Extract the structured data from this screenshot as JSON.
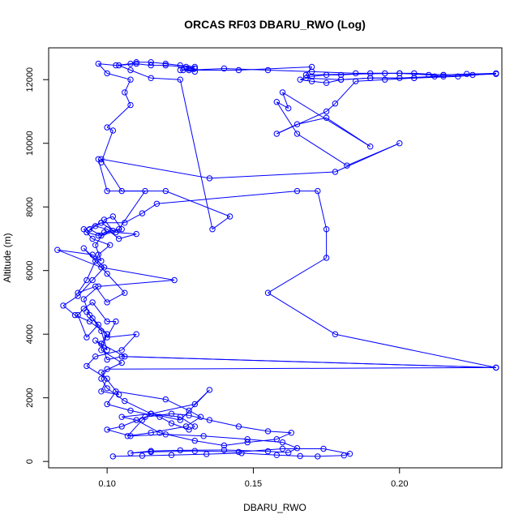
{
  "chart_data": {
    "type": "line",
    "title": "ORCAS RF03 DBARU_RWO (Log)",
    "xlabel": "DBARU_RWO",
    "ylabel": "Altitude (m)",
    "xlim": [
      0.08,
      0.235
    ],
    "ylim": [
      -200,
      13000
    ],
    "xticks": [
      0.1,
      0.15,
      0.2
    ],
    "xtick_labels": [
      "0.10",
      "0.15",
      "0.20"
    ],
    "yticks": [
      0,
      2000,
      4000,
      6000,
      8000,
      10000,
      12000
    ],
    "ytick_labels": [
      "0",
      "2000",
      "4000",
      "6000",
      "8000",
      "10000",
      "12000"
    ],
    "grid": false,
    "marker": "open-circle",
    "line_color": "#0000ff",
    "points": [
      [
        0.102,
        160
      ],
      [
        0.112,
        180
      ],
      [
        0.122,
        200
      ],
      [
        0.134,
        230
      ],
      [
        0.146,
        260
      ],
      [
        0.158,
        200
      ],
      [
        0.166,
        170
      ],
      [
        0.172,
        160
      ],
      [
        0.181,
        190
      ],
      [
        0.183,
        240
      ],
      [
        0.174,
        400
      ],
      [
        0.16,
        400
      ],
      [
        0.145,
        300
      ],
      [
        0.13,
        330
      ],
      [
        0.115,
        300
      ],
      [
        0.108,
        260
      ],
      [
        0.115,
        330
      ],
      [
        0.125,
        350
      ],
      [
        0.14,
        360
      ],
      [
        0.155,
        320
      ],
      [
        0.162,
        280
      ],
      [
        0.165,
        420
      ],
      [
        0.16,
        600
      ],
      [
        0.148,
        700
      ],
      [
        0.133,
        800
      ],
      [
        0.12,
        850
      ],
      [
        0.108,
        800
      ],
      [
        0.1,
        1000
      ],
      [
        0.105,
        1100
      ],
      [
        0.113,
        1400
      ],
      [
        0.122,
        1500
      ],
      [
        0.128,
        1450
      ],
      [
        0.135,
        1300
      ],
      [
        0.145,
        1100
      ],
      [
        0.155,
        950
      ],
      [
        0.163,
        900
      ],
      [
        0.158,
        700
      ],
      [
        0.148,
        600
      ],
      [
        0.14,
        500
      ],
      [
        0.13,
        650
      ],
      [
        0.118,
        900
      ],
      [
        0.11,
        1300
      ],
      [
        0.105,
        1400
      ],
      [
        0.115,
        1500
      ],
      [
        0.125,
        1400
      ],
      [
        0.13,
        1100
      ],
      [
        0.128,
        1000
      ],
      [
        0.122,
        1200
      ],
      [
        0.118,
        1400
      ],
      [
        0.108,
        1600
      ],
      [
        0.1,
        1800
      ],
      [
        0.103,
        2200
      ],
      [
        0.12,
        1950
      ],
      [
        0.128,
        1600
      ],
      [
        0.132,
        1400
      ],
      [
        0.127,
        1100
      ],
      [
        0.115,
        900
      ],
      [
        0.107,
        800
      ],
      [
        0.112,
        1300
      ],
      [
        0.115,
        1500
      ],
      [
        0.125,
        1300
      ],
      [
        0.135,
        2250
      ],
      [
        0.13,
        1800
      ],
      [
        0.115,
        1500
      ],
      [
        0.106,
        1900
      ],
      [
        0.1,
        2300
      ],
      [
        0.098,
        2600
      ],
      [
        0.1,
        2900
      ],
      [
        0.233,
        2950
      ],
      [
        0.105,
        3300
      ],
      [
        0.1,
        3200
      ],
      [
        0.098,
        3700
      ],
      [
        0.096,
        3800
      ],
      [
        0.1,
        3500
      ],
      [
        0.098,
        4100
      ],
      [
        0.095,
        4500
      ],
      [
        0.093,
        4700
      ],
      [
        0.097,
        4300
      ],
      [
        0.093,
        3900
      ],
      [
        0.09,
        4600
      ],
      [
        0.092,
        4800
      ],
      [
        0.095,
        5000
      ],
      [
        0.1,
        4400
      ],
      [
        0.103,
        4400
      ],
      [
        0.1,
        3900
      ],
      [
        0.11,
        4000
      ],
      [
        0.105,
        3500
      ],
      [
        0.096,
        3300
      ],
      [
        0.093,
        3000
      ],
      [
        0.1,
        2600
      ],
      [
        0.098,
        2200
      ],
      [
        0.104,
        2100
      ],
      [
        0.098,
        2800
      ],
      [
        0.105,
        3100
      ],
      [
        0.098,
        3500
      ],
      [
        0.1,
        4000
      ],
      [
        0.094,
        4400
      ],
      [
        0.089,
        4600
      ],
      [
        0.085,
        4900
      ],
      [
        0.09,
        5200
      ],
      [
        0.095,
        5700
      ],
      [
        0.099,
        6100
      ],
      [
        0.092,
        6700
      ],
      [
        0.096,
        6300
      ],
      [
        0.1,
        5900
      ],
      [
        0.106,
        5300
      ],
      [
        0.1,
        5000
      ],
      [
        0.096,
        5500
      ],
      [
        0.09,
        5300
      ],
      [
        0.093,
        5700
      ],
      [
        0.097,
        6500
      ],
      [
        0.101,
        6800
      ],
      [
        0.095,
        7000
      ],
      [
        0.092,
        7300
      ],
      [
        0.098,
        7500
      ],
      [
        0.103,
        7200
      ],
      [
        0.11,
        7150
      ],
      [
        0.104,
        7000
      ],
      [
        0.1,
        7300
      ],
      [
        0.096,
        7400
      ],
      [
        0.093,
        7200
      ],
      [
        0.097,
        7100
      ],
      [
        0.102,
        7250
      ],
      [
        0.099,
        7600
      ],
      [
        0.102,
        7700
      ],
      [
        0.105,
        7300
      ],
      [
        0.098,
        7100
      ],
      [
        0.094,
        7300
      ],
      [
        0.098,
        7500
      ],
      [
        0.106,
        7500
      ],
      [
        0.112,
        7800
      ],
      [
        0.117,
        8100
      ],
      [
        0.165,
        8500
      ],
      [
        0.172,
        8500
      ],
      [
        0.175,
        7300
      ],
      [
        0.175,
        6400
      ],
      [
        0.155,
        5300
      ],
      [
        0.178,
        4000
      ],
      [
        0.233,
        2950
      ],
      [
        0.106,
        3300
      ],
      [
        0.098,
        3700
      ],
      [
        0.1,
        4000
      ],
      [
        0.094,
        4600
      ],
      [
        0.092,
        5100
      ],
      [
        0.097,
        5500
      ],
      [
        0.123,
        5700
      ],
      [
        0.098,
        6100
      ],
      [
        0.083,
        6650
      ],
      [
        0.095,
        6500
      ],
      [
        0.098,
        6300
      ],
      [
        0.096,
        6800
      ],
      [
        0.099,
        7200
      ],
      [
        0.104,
        7300
      ],
      [
        0.113,
        8500
      ],
      [
        0.1,
        8500
      ],
      [
        0.097,
        9500
      ],
      [
        0.098,
        9400
      ],
      [
        0.102,
        10400
      ],
      [
        0.1,
        10500
      ],
      [
        0.108,
        11200
      ],
      [
        0.106,
        11600
      ],
      [
        0.108,
        12000
      ],
      [
        0.1,
        12200
      ],
      [
        0.097,
        12500
      ],
      [
        0.103,
        12450
      ],
      [
        0.108,
        12500
      ],
      [
        0.11,
        12550
      ],
      [
        0.115,
        12550
      ],
      [
        0.12,
        12500
      ],
      [
        0.125,
        12450
      ],
      [
        0.13,
        12400
      ],
      [
        0.128,
        12350
      ],
      [
        0.126,
        12300
      ],
      [
        0.13,
        12250
      ],
      [
        0.128,
        12300
      ],
      [
        0.14,
        12350
      ],
      [
        0.155,
        12300
      ],
      [
        0.17,
        12250
      ],
      [
        0.185,
        12200
      ],
      [
        0.195,
        12200
      ],
      [
        0.205,
        12200
      ],
      [
        0.215,
        12150
      ],
      [
        0.223,
        12180
      ],
      [
        0.233,
        12180
      ],
      [
        0.225,
        12150
      ],
      [
        0.212,
        12100
      ],
      [
        0.2,
        12050
      ],
      [
        0.19,
        12050
      ],
      [
        0.18,
        12000
      ],
      [
        0.175,
        11900
      ],
      [
        0.17,
        11950
      ],
      [
        0.166,
        12000
      ],
      [
        0.17,
        12100
      ],
      [
        0.175,
        12150
      ],
      [
        0.18,
        12150
      ],
      [
        0.19,
        12200
      ],
      [
        0.2,
        12200
      ],
      [
        0.21,
        12150
      ],
      [
        0.215,
        12100
      ],
      [
        0.205,
        12050
      ],
      [
        0.195,
        12000
      ],
      [
        0.185,
        11950
      ],
      [
        0.178,
        11250
      ],
      [
        0.175,
        11000
      ],
      [
        0.158,
        10300
      ],
      [
        0.165,
        10600
      ],
      [
        0.175,
        10800
      ],
      [
        0.19,
        9900
      ],
      [
        0.16,
        11600
      ],
      [
        0.162,
        11100
      ],
      [
        0.158,
        11300
      ],
      [
        0.165,
        10300
      ],
      [
        0.182,
        9300
      ],
      [
        0.2,
        10000
      ],
      [
        0.178,
        9100
      ],
      [
        0.135,
        8900
      ],
      [
        0.098,
        9500
      ],
      [
        0.105,
        8500
      ],
      [
        0.12,
        8500
      ],
      [
        0.142,
        7700
      ],
      [
        0.136,
        7300
      ],
      [
        0.125,
        12000
      ],
      [
        0.115,
        12050
      ],
      [
        0.108,
        12300
      ],
      [
        0.104,
        12450
      ],
      [
        0.11,
        12500
      ],
      [
        0.115,
        12450
      ],
      [
        0.12,
        12450
      ],
      [
        0.127,
        12400
      ],
      [
        0.13,
        12350
      ],
      [
        0.125,
        12300
      ],
      [
        0.145,
        12300
      ],
      [
        0.17,
        12400
      ],
      [
        0.168,
        12150
      ],
      [
        0.2,
        12200
      ],
      [
        0.215,
        12150
      ],
      [
        0.233,
        12200
      ],
      [
        0.22,
        12100
      ],
      [
        0.205,
        12050
      ],
      [
        0.19,
        12050
      ],
      [
        0.18,
        12000
      ],
      [
        0.168,
        12050
      ]
    ]
  }
}
